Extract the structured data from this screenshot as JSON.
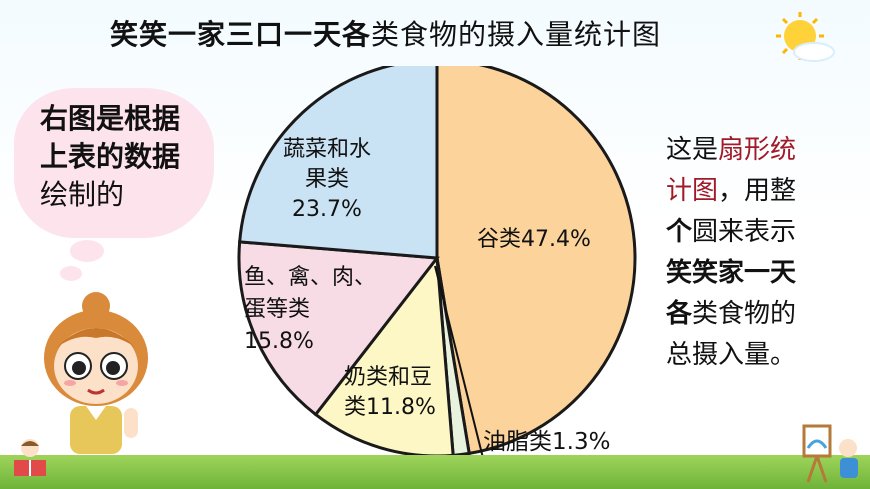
{
  "title": {
    "bold_part": "笑笑一家三口一天各",
    "rest": "类食物的摄入量统计图"
  },
  "bubble": {
    "line1": "右图是根据",
    "line2": "上表的数据",
    "line3": "绘制的"
  },
  "side_note": {
    "l1a": "这是",
    "l1b": "扇形统",
    "l2a": "计图",
    "l2b": "，用整",
    "l3a": "个",
    "l3b": "圆来表示",
    "l4": "笑笑家一天",
    "l5a": "各",
    "l5b": "类食物的",
    "l6": "总摄入量。"
  },
  "colors": {
    "grain": "#fbd39b",
    "vegetables": "#c9e2f4",
    "meat": "#f7dce6",
    "dairy": "#fdf7c6",
    "oil": "#e8f2dc",
    "highlight": "#a01a28"
  },
  "chart_data": {
    "type": "pie",
    "title": "",
    "slices": [
      {
        "name": "谷类",
        "value": 47.4,
        "label": "谷类47.4%"
      },
      {
        "name": "油脂类",
        "value": 1.3,
        "label": "油脂类1.3%"
      },
      {
        "name": "奶类和豆类",
        "value": 11.8,
        "label_lines": [
          "奶类和豆",
          "类11.8%"
        ]
      },
      {
        "name": "鱼、禽、肉、蛋等类",
        "value": 15.8,
        "label_lines": [
          "鱼、禽、肉、",
          "蛋等类",
          "15.8%"
        ]
      },
      {
        "name": "蔬菜和水果类",
        "value": 23.7,
        "label_lines": [
          "蔬菜和水",
          "果类",
          "23.7%"
        ]
      }
    ]
  },
  "icons": {
    "sun": "sun-icon",
    "girl": "girl-character",
    "reader": "reading-kid-icon",
    "easel": "easel-kid-icon"
  }
}
